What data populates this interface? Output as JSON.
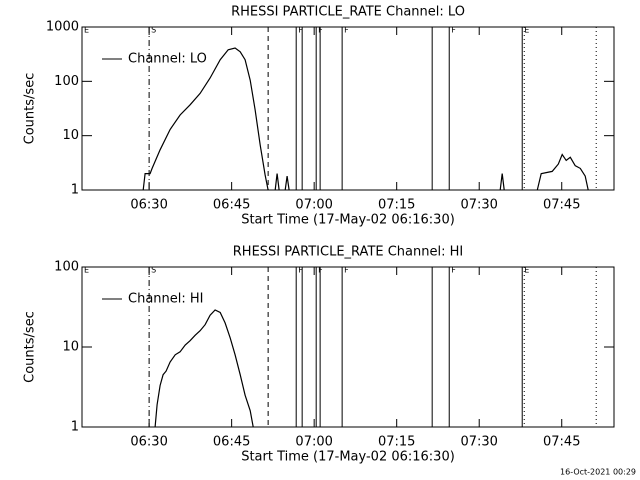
{
  "chart_data": [
    {
      "type": "line",
      "title": "RHESSI PARTICLE_RATE Channel: LO",
      "xlabel": "Start Time (17-May-02 06:16:30)",
      "ylabel": "Counts/sec",
      "xlim": [
        "06:17:48",
        "07:54:30"
      ],
      "xticks": [
        "06:30",
        "06:45",
        "07:00",
        "07:15",
        "07:30",
        "07:45"
      ],
      "ylim": [
        1,
        1000
      ],
      "yticks": [
        1,
        10,
        100,
        1000
      ],
      "ylog": true,
      "legend": "upper left",
      "x": [
        "06:28:55",
        "06:29:16",
        "06:30:11",
        "06:30:33",
        "06:32:00",
        "06:33:49",
        "06:35:38",
        "06:37:27",
        "06:39:16",
        "06:41:05",
        "06:42:55",
        "06:44:22",
        "06:45:38",
        "06:46:33",
        "06:47:27",
        "06:48:22",
        "06:49:16",
        "06:50:11",
        "06:51:05",
        "06:51:38",
        "06:52:20",
        "06:52:55",
        "06:53:16",
        "06:53:38",
        "06:54:10",
        "06:54:44",
        "06:55:05",
        "06:55:27",
        "07:10:00",
        "07:33:49",
        "07:34:11",
        "07:34:33",
        "07:38:00",
        "07:40:33",
        "07:41:16",
        "07:43:16",
        "07:44:22",
        "07:45:05",
        "07:45:49",
        "07:46:33",
        "07:47:27",
        "07:48:22",
        "07:49:16",
        "07:49:49"
      ],
      "series": [
        {
          "name": "Channel: LO",
          "color": "#000000",
          "values": [
            1,
            2,
            2,
            2.5,
            5.5,
            13,
            24,
            37,
            60,
            115,
            250,
            380,
            410,
            350,
            250,
            105,
            30,
            6.7,
            1.9,
            1,
            null,
            1,
            2,
            1,
            null,
            1,
            1.8,
            1,
            null,
            1,
            2,
            1,
            null,
            1,
            2,
            2.2,
            3,
            4.5,
            3.5,
            4,
            2.8,
            2.5,
            1.8,
            1
          ]
        }
      ],
      "vlines": [
        {
          "x": "06:30:00",
          "style": "dashdot"
        },
        {
          "x": "06:51:38",
          "style": "dashed"
        },
        {
          "x": "06:56:44",
          "style": "solid"
        },
        {
          "x": "06:57:49",
          "style": "solid"
        },
        {
          "x": "07:00:22",
          "style": "solid"
        },
        {
          "x": "07:01:05",
          "style": "solid"
        },
        {
          "x": "07:05:05",
          "style": "solid"
        },
        {
          "x": "07:21:27",
          "style": "solid"
        },
        {
          "x": "07:24:33",
          "style": "solid"
        },
        {
          "x": "07:37:49",
          "style": "solid"
        },
        {
          "x": "07:38:11",
          "style": "dotted"
        },
        {
          "x": "07:51:16",
          "style": "dotted"
        }
      ],
      "annotations": [
        {
          "text": "E",
          "x": "06:17:48"
        },
        {
          "text": "S",
          "x": "06:30:00"
        },
        {
          "text": "F",
          "x": "06:56:44"
        },
        {
          "text": "F",
          "x": "07:00:22"
        },
        {
          "text": "F",
          "x": "07:05:05"
        },
        {
          "text": "F",
          "x": "07:24:33"
        },
        {
          "text": "E",
          "x": "07:37:49"
        }
      ]
    },
    {
      "type": "line",
      "title": "RHESSI PARTICLE_RATE Channel: HI",
      "xlabel": "Start Time (17-May-02 06:16:30)",
      "ylabel": "Counts/sec",
      "xlim": [
        "06:17:48",
        "07:54:30"
      ],
      "xticks": [
        "06:30",
        "06:45",
        "07:00",
        "07:15",
        "07:30",
        "07:45"
      ],
      "ylim": [
        1,
        100
      ],
      "yticks": [
        1,
        10,
        100
      ],
      "ylog": true,
      "legend": "upper left",
      "x": [
        "06:31:05",
        "06:31:27",
        "06:32:00",
        "06:32:33",
        "06:33:05",
        "06:33:49",
        "06:34:44",
        "06:35:38",
        "06:36:33",
        "06:37:27",
        "06:38:22",
        "06:39:16",
        "06:40:11",
        "06:41:05",
        "06:42:00",
        "06:42:55",
        "06:43:49",
        "06:44:44",
        "06:45:38",
        "06:46:33",
        "06:47:27",
        "06:48:22",
        "06:48:55"
      ],
      "series": [
        {
          "name": "Channel: HI",
          "color": "#000000",
          "values": [
            1,
            1.9,
            3.3,
            4.5,
            5,
            6.5,
            8,
            8.7,
            10.6,
            12,
            14,
            16,
            19,
            25,
            29,
            27,
            20,
            13,
            8,
            4.5,
            2.5,
            1.6,
            1
          ]
        }
      ],
      "vlines": [
        {
          "x": "06:30:00",
          "style": "dashdot"
        },
        {
          "x": "06:51:38",
          "style": "dashed"
        },
        {
          "x": "06:56:44",
          "style": "solid"
        },
        {
          "x": "06:57:49",
          "style": "solid"
        },
        {
          "x": "07:00:22",
          "style": "solid"
        },
        {
          "x": "07:01:05",
          "style": "solid"
        },
        {
          "x": "07:05:05",
          "style": "solid"
        },
        {
          "x": "07:21:27",
          "style": "solid"
        },
        {
          "x": "07:24:33",
          "style": "solid"
        },
        {
          "x": "07:37:49",
          "style": "solid"
        },
        {
          "x": "07:38:11",
          "style": "dotted"
        },
        {
          "x": "07:51:16",
          "style": "dotted"
        }
      ],
      "annotations": [
        {
          "text": "E",
          "x": "06:17:48"
        },
        {
          "text": "S",
          "x": "06:30:00"
        },
        {
          "text": "F",
          "x": "06:56:44"
        },
        {
          "text": "F",
          "x": "07:00:22"
        },
        {
          "text": "F",
          "x": "07:05:05"
        },
        {
          "text": "F",
          "x": "07:24:33"
        },
        {
          "text": "E",
          "x": "07:37:49"
        }
      ]
    }
  ],
  "footer": "16-Oct-2021 00:29"
}
